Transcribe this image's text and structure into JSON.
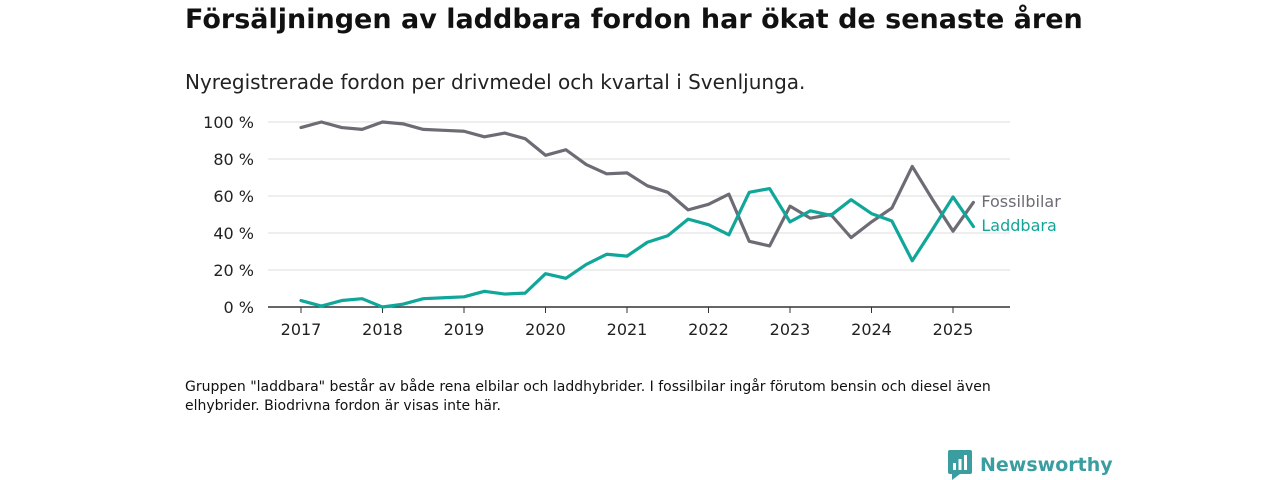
{
  "title": "Försäljningen av laddbara fordon har ökat de senaste åren",
  "subtitle": "Nyregistrerade fordon per drivmedel och kvartal i Svenljunga.",
  "note": "Gruppen \"laddbara\" består av både rena elbilar och laddhybrider. I fossilbilar ingår förutom bensin och diesel även elhybrider. Biodrivna fordon är visas inte här.",
  "brand": {
    "name": "Newsworthy",
    "icon": "newsworthy-logo-icon",
    "color": "#3a9da0"
  },
  "chart_data": {
    "type": "line",
    "ylim": [
      0,
      100
    ],
    "y_ticks": [
      0,
      20,
      40,
      60,
      80,
      100
    ],
    "y_tick_labels": [
      "0 %",
      "20 %",
      "40 %",
      "60 %",
      "80 %",
      "100 %"
    ],
    "x_ticks": [
      2017,
      2018,
      2019,
      2020,
      2021,
      2022,
      2023,
      2024,
      2025
    ],
    "x_tick_labels": [
      "2017",
      "2018",
      "2019",
      "2020",
      "2021",
      "2022",
      "2023",
      "2024",
      "2025"
    ],
    "grid": true,
    "legend": "inline-right",
    "x": [
      2017.0,
      2017.25,
      2017.5,
      2017.75,
      2018.0,
      2018.25,
      2018.5,
      2018.75,
      2019.0,
      2019.25,
      2019.5,
      2019.75,
      2020.0,
      2020.25,
      2020.5,
      2020.75,
      2021.0,
      2021.25,
      2021.5,
      2021.75,
      2022.0,
      2022.25,
      2022.5,
      2022.75,
      2023.0,
      2023.25,
      2023.5,
      2023.75,
      2024.0,
      2024.25,
      2024.5,
      2024.75,
      2025.0,
      2025.25
    ],
    "series": [
      {
        "name": "Fossilbilar",
        "color": "#6d6c74",
        "values": [
          97,
          100,
          97,
          96,
          100,
          99,
          96,
          95.5,
          95,
          92,
          94,
          91,
          82,
          85,
          77,
          72,
          72.5,
          65.5,
          62,
          52.5,
          55.5,
          61,
          35.5,
          33,
          54.5,
          48,
          50,
          37.5,
          46,
          53.5,
          76,
          58,
          41,
          56.5
        ]
      },
      {
        "name": "Laddbara",
        "color": "#10a79a",
        "values": [
          3.5,
          0.5,
          3.5,
          4.5,
          0,
          1.5,
          4.5,
          5,
          5.5,
          8.5,
          7,
          7.5,
          18,
          15.5,
          23,
          28.5,
          27.5,
          35,
          38.5,
          47.5,
          44.5,
          39,
          62,
          64,
          46,
          52,
          49.5,
          58,
          50.5,
          46.5,
          25,
          42,
          59.5,
          43.5
        ]
      }
    ]
  }
}
